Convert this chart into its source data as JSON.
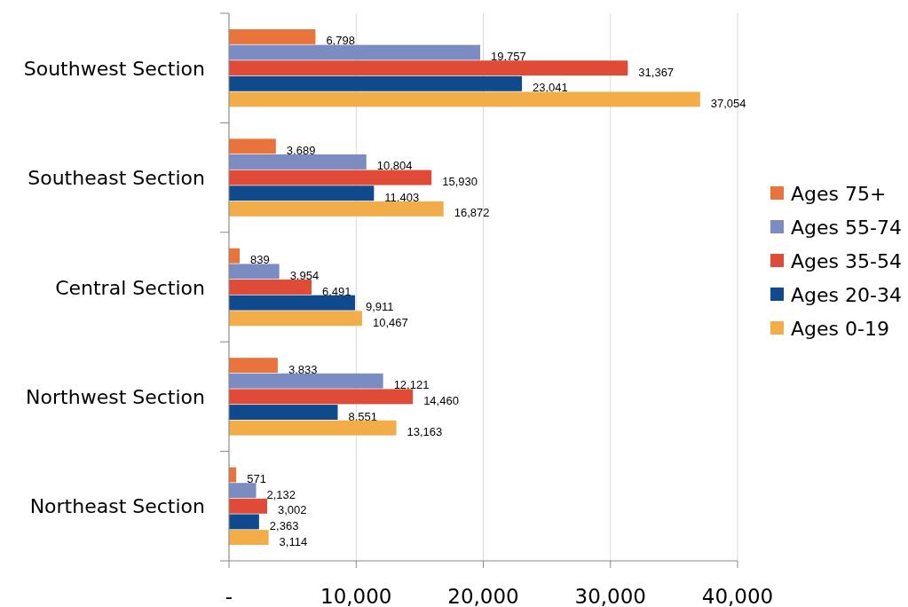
{
  "chart_data": {
    "type": "bar",
    "orientation": "horizontal",
    "categories": [
      "Southwest Section",
      "Southeast Section",
      "Central Section",
      "Northwest Section",
      "Northeast Section"
    ],
    "series": [
      {
        "name": "Ages 75+",
        "color": "#e8743b",
        "values": [
          6798,
          3689,
          839,
          3833,
          571
        ],
        "value_labels": [
          "6,798",
          "3,689",
          "839",
          "3,833",
          "571"
        ]
      },
      {
        "name": "Ages 55-74",
        "color": "#7a8cc2",
        "values": [
          19757,
          10804,
          3954,
          12121,
          2132
        ],
        "value_labels": [
          "19,757",
          "10,804",
          "3,954",
          "12,121",
          "2,132"
        ]
      },
      {
        "name": "Ages 35-54",
        "color": "#e04b38",
        "values": [
          31367,
          15930,
          6491,
          14460,
          3002
        ],
        "value_labels": [
          "31,367",
          "15,930",
          "6,491",
          "14,460",
          "3,002"
        ]
      },
      {
        "name": "Ages 20-34",
        "color": "#0f4a8c",
        "values": [
          23041,
          11403,
          9911,
          8551,
          2363
        ],
        "value_labels": [
          "23,041",
          "11,403",
          "9,911",
          "8,551",
          "2,363"
        ]
      },
      {
        "name": "Ages 0-19",
        "color": "#f2ad48",
        "values": [
          37054,
          16872,
          10467,
          13163,
          3114
        ],
        "value_labels": [
          "37,054",
          "16,872",
          "10,467",
          "13,163",
          "3,114"
        ]
      }
    ],
    "xlim": [
      0,
      40000
    ],
    "xticks": [
      {
        "value": 0,
        "label": "-"
      },
      {
        "value": 10000,
        "label": "10,000"
      },
      {
        "value": 20000,
        "label": "20,000"
      },
      {
        "value": 30000,
        "label": "30,000"
      },
      {
        "value": 40000,
        "label": "40,000"
      }
    ],
    "grid": "x",
    "legend": "right"
  }
}
